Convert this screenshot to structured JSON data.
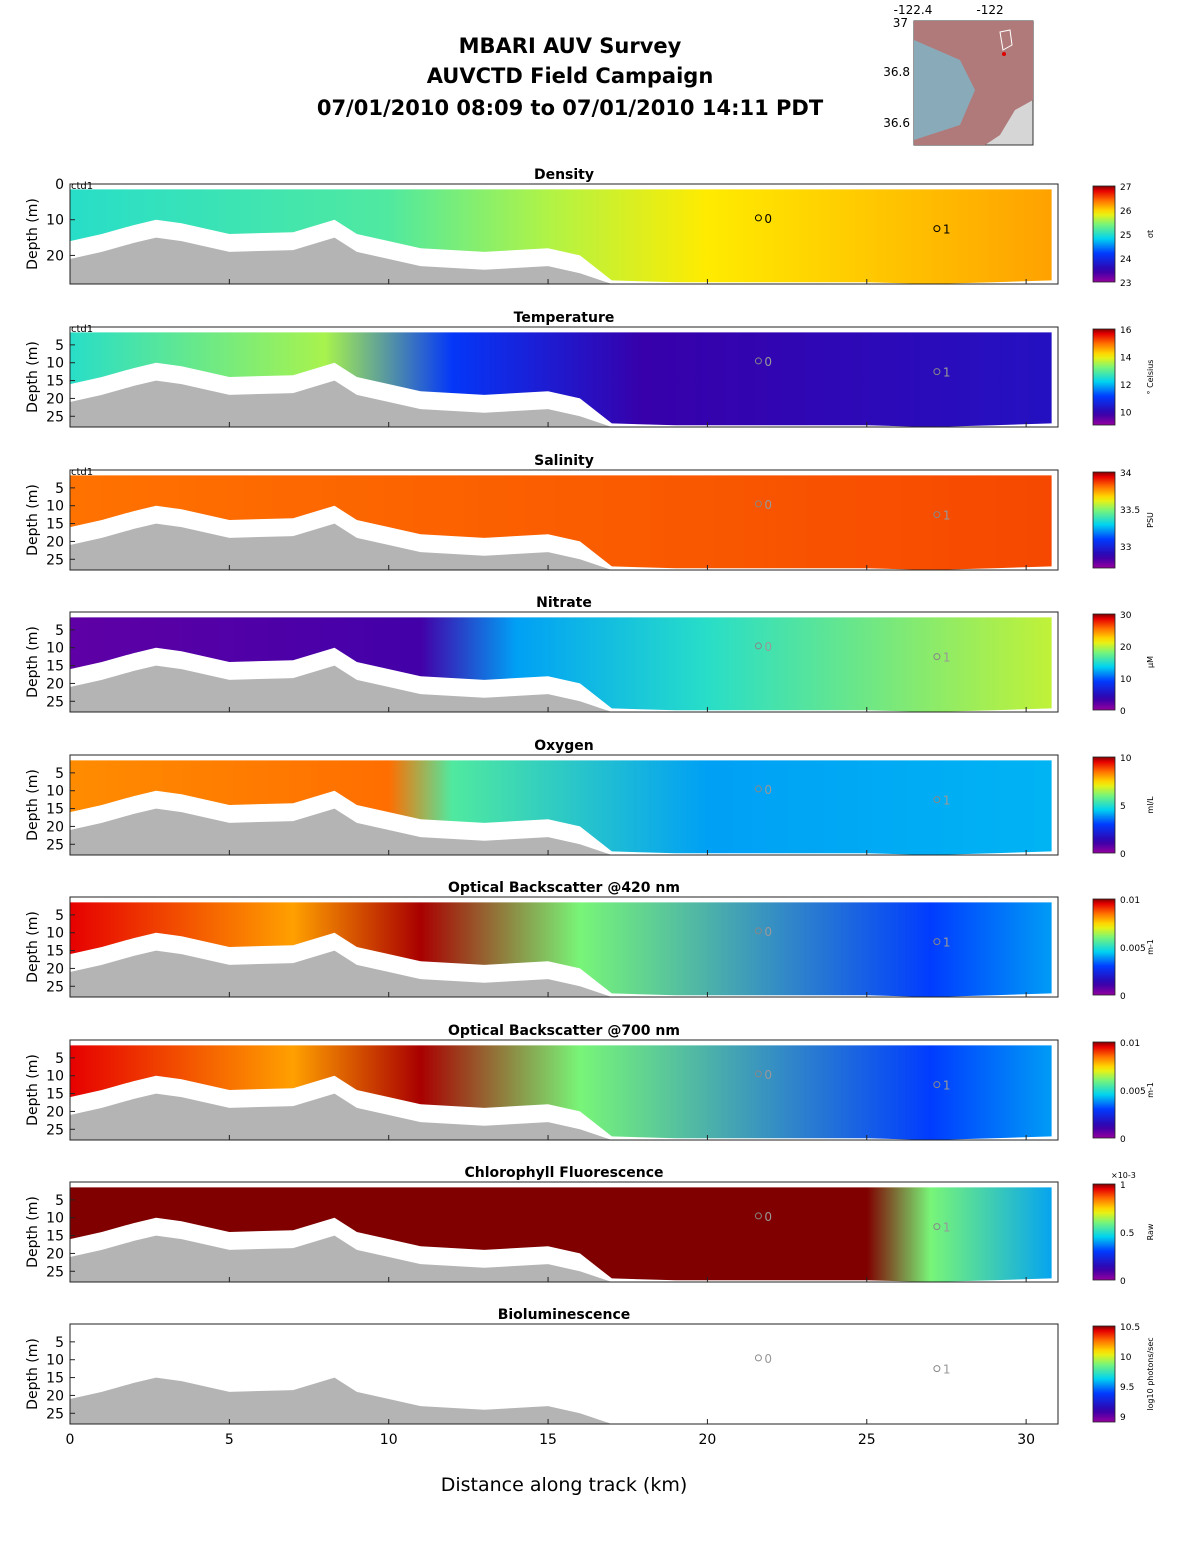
{
  "header": {
    "title_line1": "MBARI AUV Survey",
    "title_line2": "AUVCTD Field Campaign",
    "title_line3": "07/01/2010 08:09  to 07/01/2010 14:11 PDT"
  },
  "inset_map": {
    "lon_ticks": [
      "-122.4",
      "-122"
    ],
    "lat_ticks": [
      "37",
      "36.8",
      "36.6"
    ]
  },
  "xlabel": "Distance along track (km)",
  "chart_data": {
    "type": "heatmap",
    "xlabel": "Distance along track (km)",
    "xlim": [
      0,
      31
    ],
    "x_ticks": [
      0,
      5,
      10,
      15,
      20,
      25,
      30
    ],
    "ylabel": "Depth (m)",
    "ylim": [
      28,
      0
    ],
    "annotation_platform": "ctd1",
    "waypoints": [
      {
        "label": "0",
        "x": 21.6,
        "depth": 9.5
      },
      {
        "label": "1",
        "x": 27.2,
        "depth": 12.5
      }
    ],
    "track_bottom_depth": {
      "x": [
        0,
        1,
        2,
        2.7,
        3.5,
        5,
        7,
        8.3,
        9,
        11,
        13,
        15,
        16,
        17,
        19,
        21,
        23,
        25,
        27,
        29,
        30.8
      ],
      "depth": [
        16,
        14,
        11.5,
        10,
        11,
        14,
        13.5,
        10,
        14,
        18,
        19,
        18,
        20,
        27,
        27.5,
        27.5,
        27.5,
        27.5,
        28,
        27.5,
        27
      ]
    },
    "panels": [
      {
        "title": "Density",
        "colorbar_label": "σt",
        "clim": [
          23,
          27
        ],
        "cticks": [
          "27",
          "26",
          "25",
          "24",
          "23"
        ],
        "yticks": [
          "0",
          "10",
          "20"
        ],
        "top_label": "ctd1",
        "profile": [
          {
            "x": 0,
            "v": 25.0
          },
          {
            "x": 10,
            "v": 25.2
          },
          {
            "x": 15,
            "v": 25.6
          },
          {
            "x": 20,
            "v": 25.9
          },
          {
            "x": 31,
            "v": 26.2
          }
        ]
      },
      {
        "title": "Temperature",
        "colorbar_label": "° Celsius",
        "clim": [
          9,
          16
        ],
        "cticks": [
          "16",
          "14",
          "12",
          "10"
        ],
        "yticks": [
          "5",
          "10",
          "15",
          "20",
          "25"
        ],
        "top_label": "ctd1",
        "profile": [
          {
            "x": 0,
            "v": 12.5
          },
          {
            "x": 8,
            "v": 13.5
          },
          {
            "x": 12,
            "v": 11.0
          },
          {
            "x": 18,
            "v": 9.8
          },
          {
            "x": 31,
            "v": 10.2
          }
        ]
      },
      {
        "title": "Salinity",
        "colorbar_label": "PSU",
        "clim": [
          32.7,
          34
        ],
        "cticks": [
          "34",
          "33.5",
          "33"
        ],
        "yticks": [
          "5",
          "10",
          "15",
          "20",
          "25"
        ],
        "top_label": "ctd1",
        "profile": [
          {
            "x": 0,
            "v": 33.8
          },
          {
            "x": 31,
            "v": 33.85
          }
        ]
      },
      {
        "title": "Nitrate",
        "colorbar_label": "μM",
        "clim": [
          0,
          30
        ],
        "cticks": [
          "30",
          "20",
          "10",
          "0"
        ],
        "yticks": [
          "5",
          "10",
          "15",
          "20",
          "25"
        ],
        "top_label": "",
        "profile": [
          {
            "x": 0,
            "v": 2
          },
          {
            "x": 11,
            "v": 3
          },
          {
            "x": 14,
            "v": 12
          },
          {
            "x": 20,
            "v": 15
          },
          {
            "x": 31,
            "v": 20
          }
        ]
      },
      {
        "title": "Oxygen",
        "colorbar_label": "ml/L",
        "clim": [
          0,
          10
        ],
        "cticks": [
          "10",
          "5",
          "0"
        ],
        "yticks": [
          "5",
          "10",
          "15",
          "20",
          "25"
        ],
        "top_label": "",
        "profile": [
          {
            "x": 0,
            "v": 8.2
          },
          {
            "x": 10,
            "v": 8.5
          },
          {
            "x": 12,
            "v": 5.5
          },
          {
            "x": 20,
            "v": 4.0
          },
          {
            "x": 31,
            "v": 4.2
          }
        ]
      },
      {
        "title": "Optical Backscatter @420 nm",
        "colorbar_label": "m-1",
        "clim": [
          0,
          0.01
        ],
        "cticks": [
          "0.01",
          "0.005",
          "0"
        ],
        "yticks": [
          "5",
          "10",
          "15",
          "20",
          "25"
        ],
        "top_label": "",
        "profile": [
          {
            "x": 0,
            "v": 0.0095
          },
          {
            "x": 7,
            "v": 0.008
          },
          {
            "x": 11,
            "v": 0.0098
          },
          {
            "x": 16,
            "v": 0.006
          },
          {
            "x": 27,
            "v": 0.003
          },
          {
            "x": 31,
            "v": 0.004
          }
        ]
      },
      {
        "title": "Optical Backscatter @700 nm",
        "colorbar_label": "m-1",
        "clim": [
          0,
          0.01
        ],
        "cticks": [
          "0.01",
          "0.005",
          "0"
        ],
        "yticks": [
          "5",
          "10",
          "15",
          "20",
          "25"
        ],
        "top_label": "",
        "profile": [
          {
            "x": 0,
            "v": 0.0095
          },
          {
            "x": 7,
            "v": 0.008
          },
          {
            "x": 11,
            "v": 0.0098
          },
          {
            "x": 16,
            "v": 0.006
          },
          {
            "x": 27,
            "v": 0.003
          },
          {
            "x": 31,
            "v": 0.004
          }
        ]
      },
      {
        "title": "Chlorophyll Fluorescence",
        "colorbar_label": "Raw",
        "clim": [
          0,
          0.001
        ],
        "cticks": [
          "1",
          "0.5",
          "0"
        ],
        "colorbar_multiplier": "×10-3",
        "yticks": [
          "5",
          "10",
          "15",
          "20",
          "25"
        ],
        "top_label": "",
        "profile": [
          {
            "x": 0,
            "v": 0.001
          },
          {
            "x": 25,
            "v": 0.001
          },
          {
            "x": 27,
            "v": 0.0006
          },
          {
            "x": 31,
            "v": 0.0004
          }
        ]
      },
      {
        "title": "Bioluminescence",
        "colorbar_label": "log10 photons/sec",
        "clim": [
          8.9,
          10.5
        ],
        "cticks": [
          "10.5",
          "10",
          "9.5",
          "9"
        ],
        "yticks": [
          "5",
          "10",
          "15",
          "20",
          "25"
        ],
        "top_label": "",
        "profile": []
      }
    ]
  }
}
